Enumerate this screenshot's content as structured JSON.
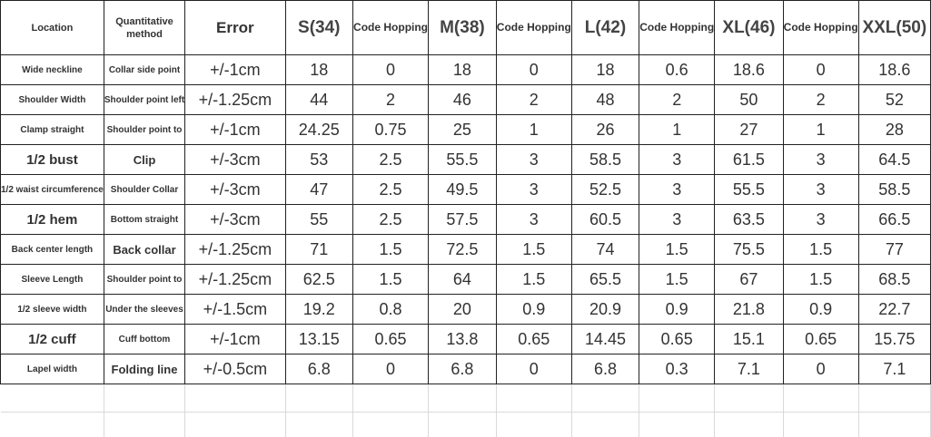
{
  "headers": {
    "location": "Location",
    "method": "Quantitative method",
    "error": "Error",
    "size_s": "S(34)",
    "hop1": "Code Hopping",
    "size_m": "M(38)",
    "hop2": "Code Hopping",
    "size_l": "L(42)",
    "hop3": "Code Hopping",
    "size_xl": "XL(46)",
    "hop4": "Code Hopping",
    "size_xxl": "XXL(50)"
  },
  "rows": [
    {
      "location": "Wide neckline",
      "method": "Collar side point",
      "error": "+/-1cm",
      "s": "18",
      "h1": "0",
      "m": "18",
      "h2": "0",
      "l": "18",
      "h3": "0.6",
      "xl": "18.6",
      "h4": "0",
      "xxl": "18.6"
    },
    {
      "location": "Shoulder Width",
      "method": "Shoulder point left",
      "error": "+/-1.25cm",
      "s": "44",
      "h1": "2",
      "m": "46",
      "h2": "2",
      "l": "48",
      "h3": "2",
      "xl": "50",
      "h4": "2",
      "xxl": "52"
    },
    {
      "location": "Clamp straight",
      "method": "Shoulder point to",
      "error": "+/-1cm",
      "s": "24.25",
      "h1": "0.75",
      "m": "25",
      "h2": "1",
      "l": "26",
      "h3": "1",
      "xl": "27",
      "h4": "1",
      "xxl": "28"
    },
    {
      "location": "1/2 bust",
      "method": "Clip",
      "error": "+/-3cm",
      "s": "53",
      "h1": "2.5",
      "m": "55.5",
      "h2": "3",
      "l": "58.5",
      "h3": "3",
      "xl": "61.5",
      "h4": "3",
      "xxl": "64.5"
    },
    {
      "location": "1/2 waist circumference",
      "method": "Shoulder Collar",
      "error": "+/-3cm",
      "s": "47",
      "h1": "2.5",
      "m": "49.5",
      "h2": "3",
      "l": "52.5",
      "h3": "3",
      "xl": "55.5",
      "h4": "3",
      "xxl": "58.5"
    },
    {
      "location": "1/2 hem",
      "method": "Bottom straight",
      "error": "+/-3cm",
      "s": "55",
      "h1": "2.5",
      "m": "57.5",
      "h2": "3",
      "l": "60.5",
      "h3": "3",
      "xl": "63.5",
      "h4": "3",
      "xxl": "66.5"
    },
    {
      "location": "Back center length",
      "method": "Back collar",
      "error": "+/-1.25cm",
      "s": "71",
      "h1": "1.5",
      "m": "72.5",
      "h2": "1.5",
      "l": "74",
      "h3": "1.5",
      "xl": "75.5",
      "h4": "1.5",
      "xxl": "77"
    },
    {
      "location": "Sleeve Length",
      "method": "Shoulder point to",
      "error": "+/-1.25cm",
      "s": "62.5",
      "h1": "1.5",
      "m": "64",
      "h2": "1.5",
      "l": "65.5",
      "h3": "1.5",
      "xl": "67",
      "h4": "1.5",
      "xxl": "68.5"
    },
    {
      "location": "1/2 sleeve width",
      "method": "Under the sleeves",
      "error": "+/-1.5cm",
      "s": "19.2",
      "h1": "0.8",
      "m": "20",
      "h2": "0.9",
      "l": "20.9",
      "h3": "0.9",
      "xl": "21.8",
      "h4": "0.9",
      "xxl": "22.7"
    },
    {
      "location": "1/2 cuff",
      "method": "Cuff bottom",
      "error": "+/-1cm",
      "s": "13.15",
      "h1": "0.65",
      "m": "13.8",
      "h2": "0.65",
      "l": "14.45",
      "h3": "0.65",
      "xl": "15.1",
      "h4": "0.65",
      "xxl": "15.75"
    },
    {
      "location": "Lapel width",
      "method": "Folding line",
      "error": "+/-0.5cm",
      "s": "6.8",
      "h1": "0",
      "m": "6.8",
      "h2": "0",
      "l": "6.8",
      "h3": "0.3",
      "xl": "7.1",
      "h4": "0",
      "xxl": "7.1"
    }
  ]
}
